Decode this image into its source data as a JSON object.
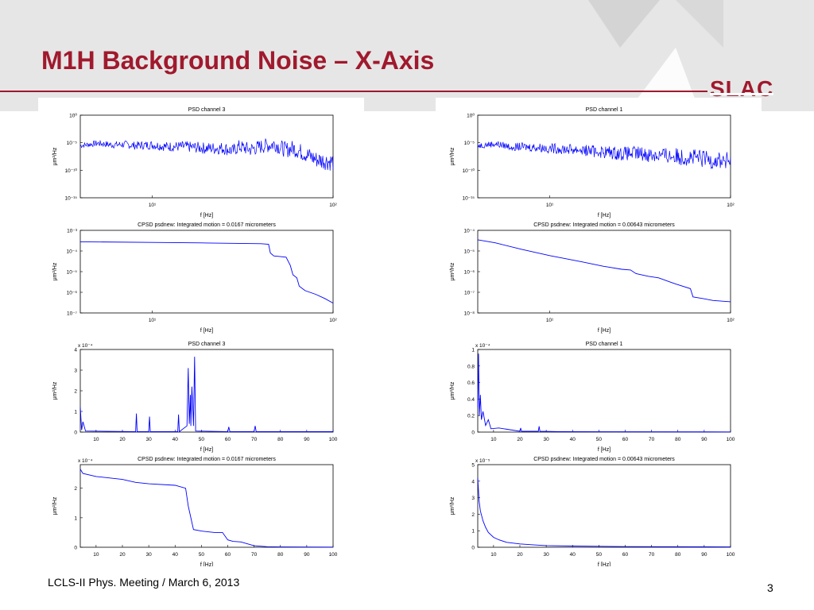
{
  "slide": {
    "title": "M1H Background Noise – X-Axis",
    "logo": "SLAC",
    "footer": "LCLS-II Phys. Meeting / March 6, 2013",
    "page_number": "3",
    "colors": {
      "title": "#a0192d",
      "band": "#e6e6e6",
      "trace": "#0000ff"
    }
  },
  "chart_data": [
    {
      "id": "left-1",
      "type": "line",
      "scale": "log-log",
      "title": "PSD channel 3",
      "xlabel": "f [Hz]",
      "ylabel": "μm²/Hz",
      "xlim": [
        4,
        100
      ],
      "ylim": [
        1e-15,
        1
      ],
      "xticks": [
        {
          "v": 10,
          "t": "10¹"
        },
        {
          "v": 100,
          "t": "10²"
        }
      ],
      "yticks": [
        {
          "v": 1,
          "t": "10⁰"
        },
        {
          "v": 1e-05,
          "t": "10⁻⁵"
        },
        {
          "v": 1e-10,
          "t": "10⁻¹⁰"
        },
        {
          "v": 1e-15,
          "t": "10⁻¹⁵"
        }
      ],
      "x": [
        4,
        5,
        6,
        7,
        8,
        10,
        12,
        15,
        20,
        25,
        28,
        30,
        35,
        40,
        45,
        48,
        50,
        55,
        60,
        70,
        80,
        90,
        100
      ],
      "y": [
        3e-06,
        8e-06,
        4e-06,
        5e-06,
        3e-06,
        4e-06,
        2e-06,
        2e-06,
        1e-06,
        1e-06,
        3e-07,
        2e-06,
        6e-07,
        2e-06,
        4e-06,
        6e-06,
        2e-06,
        5e-07,
        1e-06,
        1e-07,
        1e-08,
        5e-09,
        3e-09
      ],
      "noise": 1.2
    },
    {
      "id": "left-2",
      "type": "line",
      "scale": "log-log",
      "title": "CPSD psdnew: Integrated motion =  0.0167 micrometers",
      "xlabel": "f [Hz]",
      "ylabel": "μm²/Hz",
      "xlim": [
        4,
        100
      ],
      "ylim": [
        1e-07,
        0.001
      ],
      "xticks": [
        {
          "v": 10,
          "t": "10¹"
        },
        {
          "v": 100,
          "t": "10²"
        }
      ],
      "yticks": [
        {
          "v": 0.001,
          "t": "10⁻³"
        },
        {
          "v": 0.0001,
          "t": "10⁻⁴"
        },
        {
          "v": 1e-05,
          "t": "10⁻⁵"
        },
        {
          "v": 1e-06,
          "t": "10⁻⁶"
        },
        {
          "v": 1e-07,
          "t": "10⁻⁷"
        }
      ],
      "x": [
        4,
        10,
        20,
        30,
        40,
        44,
        45,
        47,
        50,
        55,
        58,
        60,
        63,
        65,
        70,
        80,
        90,
        100
      ],
      "y": [
        0.00028,
        0.00026,
        0.000245,
        0.000235,
        0.000225,
        0.00021,
        8e-05,
        5.8e-05,
        5.5e-05,
        5e-05,
        2e-05,
        7e-06,
        5e-06,
        2e-06,
        1.2e-06,
        8e-07,
        5e-07,
        3e-07
      ],
      "noise": 0
    },
    {
      "id": "left-3",
      "type": "line",
      "scale": "linear",
      "title": "PSD channel 3",
      "xlabel": "f [Hz]",
      "ylabel": "μm²/Hz",
      "multiplier": "x 10⁻⁴",
      "xlim": [
        4,
        100
      ],
      "ylim": [
        0,
        4
      ],
      "xticks": [
        {
          "v": 10,
          "t": "10"
        },
        {
          "v": 20,
          "t": "20"
        },
        {
          "v": 30,
          "t": "30"
        },
        {
          "v": 40,
          "t": "40"
        },
        {
          "v": 50,
          "t": "50"
        },
        {
          "v": 60,
          "t": "60"
        },
        {
          "v": 70,
          "t": "70"
        },
        {
          "v": 80,
          "t": "80"
        },
        {
          "v": 90,
          "t": "90"
        },
        {
          "v": 100,
          "t": "100"
        }
      ],
      "yticks": [
        {
          "v": 0,
          "t": "0"
        },
        {
          "v": 1,
          "t": "1"
        },
        {
          "v": 2,
          "t": "2"
        },
        {
          "v": 3,
          "t": "3"
        },
        {
          "v": 4,
          "t": "4"
        }
      ],
      "x": [
        4,
        4.5,
        5,
        6,
        25,
        25.3,
        25.6,
        30,
        30.3,
        30.6,
        41,
        41.3,
        41.6,
        44.5,
        45,
        45.4,
        45.8,
        46,
        46.4,
        47,
        47.4,
        47.8,
        60,
        60.4,
        60.8,
        70,
        70.4,
        70.8,
        100
      ],
      "y": [
        1.2,
        0.1,
        0.5,
        0.05,
        0.02,
        0.9,
        0.02,
        0.02,
        0.75,
        0.02,
        0.02,
        0.85,
        0.02,
        0.3,
        3.1,
        0.4,
        1.8,
        0.3,
        2.2,
        0.3,
        3.65,
        0.05,
        0.02,
        0.25,
        0.02,
        0.02,
        0.3,
        0.02,
        0.02
      ],
      "noise": 0
    },
    {
      "id": "left-4",
      "type": "line",
      "scale": "linear",
      "title": "CPSD psdnew: Integrated motion =  0.0167 micrometers",
      "xlabel": "f [Hz]",
      "ylabel": "μm²/Hz",
      "multiplier": "x 10⁻⁴",
      "xlim": [
        4,
        100
      ],
      "ylim": [
        0,
        2.8
      ],
      "xticks": [
        {
          "v": 10,
          "t": "10"
        },
        {
          "v": 20,
          "t": "20"
        },
        {
          "v": 30,
          "t": "30"
        },
        {
          "v": 40,
          "t": "40"
        },
        {
          "v": 50,
          "t": "50"
        },
        {
          "v": 60,
          "t": "60"
        },
        {
          "v": 70,
          "t": "70"
        },
        {
          "v": 80,
          "t": "80"
        },
        {
          "v": 90,
          "t": "90"
        },
        {
          "v": 100,
          "t": "100"
        }
      ],
      "yticks": [
        {
          "v": 0,
          "t": "0"
        },
        {
          "v": 1,
          "t": "1"
        },
        {
          "v": 2,
          "t": "2"
        }
      ],
      "x": [
        4,
        5,
        10,
        20,
        25,
        30,
        40,
        44,
        45,
        47,
        50,
        55,
        58,
        60,
        62,
        65,
        70,
        75,
        80,
        100
      ],
      "y": [
        2.65,
        2.5,
        2.4,
        2.3,
        2.2,
        2.15,
        2.1,
        2.0,
        1.4,
        0.6,
        0.55,
        0.5,
        0.5,
        0.25,
        0.2,
        0.18,
        0.05,
        0.02,
        0.01,
        0.005
      ],
      "noise": 0
    },
    {
      "id": "right-1",
      "type": "line",
      "scale": "log-log",
      "title": "PSD channel 1",
      "xlabel": "f [Hz]",
      "ylabel": "μm²/Hz",
      "xlim": [
        4,
        100
      ],
      "ylim": [
        1e-15,
        1
      ],
      "xticks": [
        {
          "v": 10,
          "t": "10¹"
        },
        {
          "v": 100,
          "t": "10²"
        }
      ],
      "yticks": [
        {
          "v": 1,
          "t": "10⁰"
        },
        {
          "v": 1e-05,
          "t": "10⁻⁵"
        },
        {
          "v": 1e-10,
          "t": "10⁻¹⁰"
        },
        {
          "v": 1e-15,
          "t": "10⁻¹⁵"
        }
      ],
      "x": [
        4,
        5,
        6,
        8,
        10,
        15,
        20,
        25,
        30,
        40,
        50,
        60,
        70,
        80,
        90,
        100
      ],
      "y": [
        3e-06,
        6e-06,
        2e-06,
        1.5e-06,
        1e-06,
        5e-07,
        2e-07,
        1e-07,
        1e-07,
        5e-08,
        3e-08,
        2e-08,
        1e-08,
        8e-09,
        5e-09,
        3e-09
      ],
      "noise": 1.3
    },
    {
      "id": "right-2",
      "type": "line",
      "scale": "log-log",
      "title": "CPSD psdnew: Integrated motion = 0.00643 micrometers",
      "xlabel": "f [Hz]",
      "ylabel": "μm²/Hz",
      "xlim": [
        4,
        100
      ],
      "ylim": [
        1e-08,
        0.0001
      ],
      "xticks": [
        {
          "v": 10,
          "t": "10¹"
        },
        {
          "v": 100,
          "t": "10²"
        }
      ],
      "yticks": [
        {
          "v": 0.0001,
          "t": "10⁻⁴"
        },
        {
          "v": 1e-05,
          "t": "10⁻⁵"
        },
        {
          "v": 1e-06,
          "t": "10⁻⁶"
        },
        {
          "v": 1e-07,
          "t": "10⁻⁷"
        },
        {
          "v": 1e-08,
          "t": "10⁻⁸"
        }
      ],
      "x": [
        4,
        5,
        7,
        10,
        15,
        20,
        25,
        28,
        30,
        35,
        40,
        47,
        50,
        60,
        62,
        70,
        80,
        100
      ],
      "y": [
        3.5e-05,
        2.5e-05,
        1.2e-05,
        6e-06,
        3e-06,
        1.8e-06,
        1.3e-06,
        1.2e-06,
        8e-07,
        6e-07,
        5e-07,
        3e-07,
        2.5e-07,
        1.5e-07,
        6e-08,
        5e-08,
        4e-08,
        3.5e-08
      ],
      "noise": 0
    },
    {
      "id": "right-3",
      "type": "line",
      "scale": "linear",
      "title": "PSD channel 1",
      "xlabel": "f [Hz]",
      "ylabel": "μm²/Hz",
      "multiplier": "x 10⁻⁴",
      "xlim": [
        4,
        100
      ],
      "ylim": [
        0,
        1
      ],
      "xticks": [
        {
          "v": 10,
          "t": "10"
        },
        {
          "v": 20,
          "t": "20"
        },
        {
          "v": 30,
          "t": "30"
        },
        {
          "v": 40,
          "t": "40"
        },
        {
          "v": 50,
          "t": "50"
        },
        {
          "v": 60,
          "t": "60"
        },
        {
          "v": 70,
          "t": "70"
        },
        {
          "v": 80,
          "t": "80"
        },
        {
          "v": 90,
          "t": "90"
        },
        {
          "v": 100,
          "t": "100"
        }
      ],
      "yticks": [
        {
          "v": 0,
          "t": "0"
        },
        {
          "v": 0.2,
          "t": "0.2"
        },
        {
          "v": 0.4,
          "t": "0.4"
        },
        {
          "v": 0.6,
          "t": "0.6"
        },
        {
          "v": 0.8,
          "t": "0.8"
        },
        {
          "v": 1,
          "t": "1"
        }
      ],
      "x": [
        4,
        4.3,
        4.6,
        5,
        5.4,
        6,
        7,
        8,
        9,
        12,
        20,
        20.3,
        20.6,
        27,
        27.3,
        27.6,
        35,
        100
      ],
      "y": [
        0.3,
        0.95,
        0.2,
        0.45,
        0.15,
        0.25,
        0.08,
        0.15,
        0.04,
        0.05,
        0.01,
        0.05,
        0.01,
        0.01,
        0.07,
        0.01,
        0.005,
        0.002
      ],
      "noise": 0
    },
    {
      "id": "right-4",
      "type": "line",
      "scale": "linear",
      "title": "CPSD psdnew: Integrated motion = 0.00643 micrometers",
      "xlabel": "f [Hz]",
      "ylabel": "μm²/Hz",
      "multiplier": "x 10⁻⁵",
      "xlim": [
        4,
        100
      ],
      "ylim": [
        0,
        5
      ],
      "xticks": [
        {
          "v": 10,
          "t": "10"
        },
        {
          "v": 20,
          "t": "20"
        },
        {
          "v": 30,
          "t": "30"
        },
        {
          "v": 40,
          "t": "40"
        },
        {
          "v": 50,
          "t": "50"
        },
        {
          "v": 60,
          "t": "60"
        },
        {
          "v": 70,
          "t": "70"
        },
        {
          "v": 80,
          "t": "80"
        },
        {
          "v": 90,
          "t": "90"
        },
        {
          "v": 100,
          "t": "100"
        }
      ],
      "yticks": [
        {
          "v": 0,
          "t": "0"
        },
        {
          "v": 1,
          "t": "1"
        },
        {
          "v": 2,
          "t": "2"
        },
        {
          "v": 3,
          "t": "3"
        },
        {
          "v": 4,
          "t": "4"
        },
        {
          "v": 5,
          "t": "5"
        }
      ],
      "x": [
        4,
        4.5,
        5,
        6,
        7,
        8,
        10,
        12,
        15,
        20,
        25,
        30,
        40,
        60,
        100
      ],
      "y": [
        4.2,
        2.8,
        2.2,
        1.6,
        1.2,
        0.9,
        0.6,
        0.45,
        0.3,
        0.2,
        0.15,
        0.1,
        0.07,
        0.04,
        0.02
      ],
      "noise": 0
    }
  ]
}
